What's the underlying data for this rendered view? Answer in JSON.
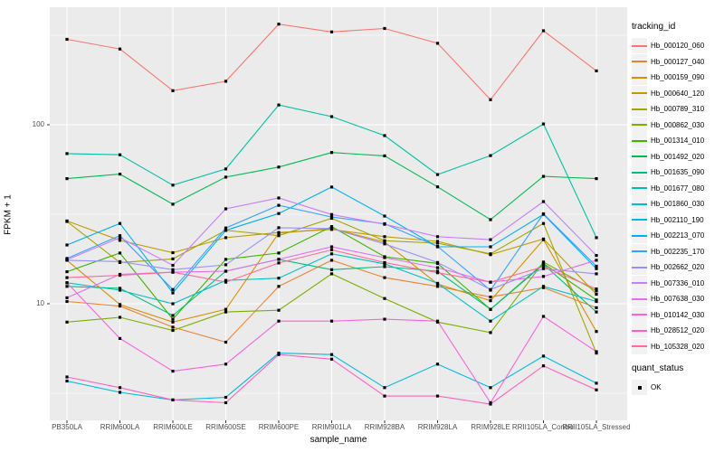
{
  "chart_data": {
    "type": "line",
    "title": "",
    "xlabel": "sample_name",
    "ylabel": "FPKM + 1",
    "y_scale": "log10",
    "y_major_ticks": [
      100,
      10
    ],
    "y_tick_labels": [
      "100",
      "10"
    ],
    "y_minor_gridlines": [
      316.2,
      31.62,
      3.162
    ],
    "ylim": [
      2.2,
      450
    ],
    "grid": "white-on-gray",
    "panel_bg": "#EBEBEB",
    "gridline_color": "#FFFFFF",
    "tick_text_color": "#4D4D4D",
    "legend_title": "tracking_id",
    "quant_legend": {
      "title": "quant_status",
      "label": "OK",
      "marker": "black-square"
    },
    "point_marker": "black-square",
    "categories": [
      "PB350LA",
      "RRIM600LA",
      "RRIM600LE",
      "RRIM600SE",
      "RRIM600PE",
      "RRIM901LA",
      "RRIM928BA",
      "RRIM928LA",
      "RRIM928LE",
      "RRII105LA_Control",
      "RRII105LA_Stressed"
    ],
    "series": [
      {
        "name": "Hb_000120_060",
        "color": "#F8766D",
        "values": [
          300,
          265,
          155,
          175,
          365,
          330,
          345,
          285,
          138,
          335,
          200
        ]
      },
      {
        "name": "Hb_000127_040",
        "color": "#EA8331",
        "values": [
          10.3,
          9.7,
          7.4,
          6.1,
          12.5,
          17.5,
          14,
          12.5,
          10.9,
          12.3,
          9.5
        ]
      },
      {
        "name": "Hb_000159_090",
        "color": "#D89000",
        "values": [
          17.5,
          9.9,
          7.9,
          9.3,
          24.8,
          26.3,
          22.1,
          12.9,
          10.4,
          22.8,
          7.0
        ]
      },
      {
        "name": "Hb_000640_120",
        "color": "#C09B00",
        "values": [
          29,
          22.6,
          19.3,
          23.4,
          25,
          26,
          23.7,
          22.3,
          18.8,
          23,
          11.3
        ]
      },
      {
        "name": "Hb_000789_310",
        "color": "#A3A500",
        "values": [
          28.8,
          17,
          17.8,
          25.7,
          24,
          30,
          22.5,
          21.8,
          19,
          28.1,
          5.3
        ]
      },
      {
        "name": "Hb_000862_030",
        "color": "#7CAE00",
        "values": [
          7.9,
          8.4,
          7.1,
          9.0,
          9.2,
          14.7,
          10.7,
          7.9,
          6.9,
          17.1,
          11.8
        ]
      },
      {
        "name": "Hb_001314_010",
        "color": "#39B600",
        "values": [
          15.1,
          19.2,
          8.2,
          17.7,
          19.2,
          27,
          18.3,
          16.8,
          9.3,
          16.8,
          10.5
        ]
      },
      {
        "name": "Hb_001492_020",
        "color": "#00BB4E",
        "values": [
          50,
          53,
          36,
          51,
          58,
          70,
          67,
          45,
          29.5,
          51.5,
          50
        ]
      },
      {
        "name": "Hb_001635_090",
        "color": "#00BF7D",
        "values": [
          12.5,
          12.2,
          8.6,
          15.2,
          17.7,
          15.5,
          16.1,
          15.2,
          9.3,
          16.6,
          9.0
        ]
      },
      {
        "name": "Hb_001677_080",
        "color": "#00C1A3",
        "values": [
          69,
          68,
          46,
          56.6,
          129,
          111,
          87,
          52.7,
          67.3,
          101,
          23.4
        ]
      },
      {
        "name": "Hb_001860_030",
        "color": "#00BFC4",
        "values": [
          13.1,
          11.9,
          10.0,
          13.5,
          13.9,
          19.0,
          16.7,
          13.0,
          8.0,
          12.5,
          10.3
        ]
      },
      {
        "name": "Hb_002110_190",
        "color": "#00BAE0",
        "values": [
          3.7,
          3.2,
          2.9,
          3.0,
          5.3,
          5.2,
          3.4,
          4.6,
          3.4,
          5.1,
          3.6
        ]
      },
      {
        "name": "Hb_002213_070",
        "color": "#00B0F6",
        "values": [
          21.3,
          28.1,
          11.5,
          25.7,
          31.9,
          44.9,
          30.9,
          20.8,
          20.8,
          31.6,
          15.7
        ]
      },
      {
        "name": "Hb_002235_170",
        "color": "#35A2FF",
        "values": [
          17.9,
          24,
          12.0,
          26.5,
          35.5,
          30.5,
          28.0,
          20.9,
          11.9,
          31.8,
          16.2
        ]
      },
      {
        "name": "Hb_002662_020",
        "color": "#9590FF",
        "values": [
          17.5,
          17.2,
          15.5,
          16.5,
          26.6,
          26.3,
          21.6,
          17.0,
          12.0,
          15.7,
          14.7
        ]
      },
      {
        "name": "Hb_007336_010",
        "color": "#C77CFF",
        "values": [
          17.6,
          23.4,
          16.4,
          33.9,
          39,
          31.5,
          27.8,
          23.7,
          22.8,
          37.2,
          18.6
        ]
      },
      {
        "name": "Hb_007638_030",
        "color": "#E76BF3",
        "values": [
          10.8,
          14.6,
          15.0,
          15.2,
          17.7,
          20.8,
          18.1,
          15.9,
          13.2,
          14.2,
          17.5
        ]
      },
      {
        "name": "Hb_010142_030",
        "color": "#FA62DB",
        "values": [
          13.1,
          6.4,
          4.2,
          4.6,
          8.0,
          8.0,
          8.2,
          8.0,
          2.8,
          8.5,
          5.4
        ]
      },
      {
        "name": "Hb_028512_020",
        "color": "#FF62BC",
        "values": [
          3.9,
          3.4,
          2.9,
          2.8,
          5.2,
          4.9,
          3.05,
          3.05,
          2.75,
          4.5,
          3.3
        ]
      },
      {
        "name": "Hb_105328_020",
        "color": "#FF6A98",
        "values": [
          14.0,
          14.4,
          15.0,
          13.2,
          16.9,
          20.0,
          17.0,
          14.9,
          13.2,
          16.1,
          12.1
        ]
      }
    ]
  }
}
